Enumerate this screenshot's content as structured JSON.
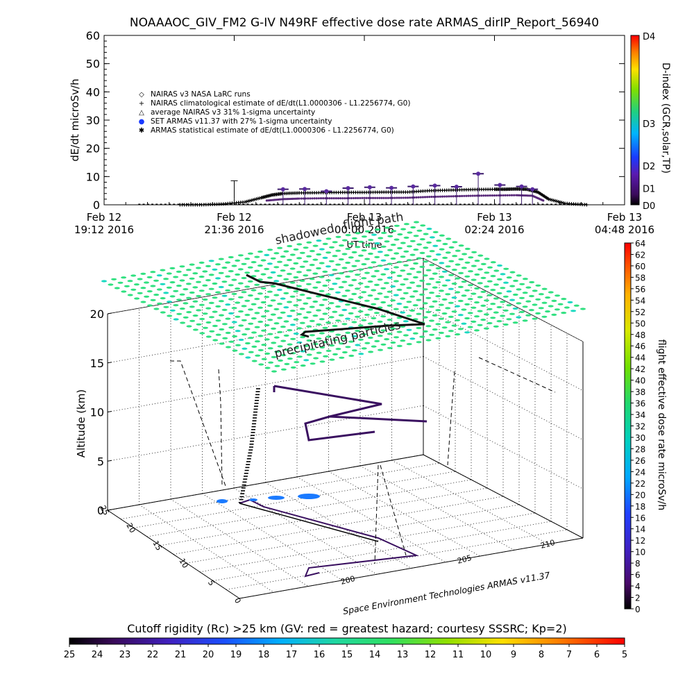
{
  "top_panel": {
    "title": "NOAAAOC_GIV_FM2 G-IV    N49RF   effective dose rate ARMAS_dirIP_Report_56940",
    "ylabel": "dE/dt microSv/h",
    "xlabel": "UT time",
    "right_label": "D-index (GCR,solar,TP)",
    "legend": [
      {
        "marker": "◇",
        "text": "NAIRAS v3 NASA LaRC runs"
      },
      {
        "marker": "+",
        "text": "NAIRAS climatological estimate of dE/dt(L1.0000306 - L1.2256774, G0)"
      },
      {
        "marker": "△",
        "text": "average NAIRAS v3 31% 1-sigma uncertainty"
      },
      {
        "marker": "●",
        "text": "SET ARMAS v11.37 with 27% 1-sigma uncertainty"
      },
      {
        "marker": "✱",
        "text": "ARMAS statistical estimate of dE/dt(L1.0000306 - L1.2256774, G0)"
      }
    ],
    "dindex_labels": [
      {
        "label": "D4",
        "level": 60
      },
      {
        "label": "D3",
        "level": 29
      },
      {
        "label": "D2",
        "level": 14
      },
      {
        "label": "D1",
        "level": 6
      },
      {
        "label": "D0",
        "level": 0
      }
    ]
  },
  "overlay_labels": {
    "shadowed": "shadowed",
    "flight_path": "flight path",
    "precipitating": "precipitating particles"
  },
  "bottom_panel": {
    "zlabel": "Altitude (km)",
    "credit": "Space Environment Technologies ARMAS v11.37",
    "colorbar_title": "flight effective dose rate microSv/h",
    "colorbar_ticks": [
      "64",
      "62",
      "60",
      "58",
      "56",
      "54",
      "52",
      "50",
      "48",
      "46",
      "44",
      "42",
      "40",
      "38",
      "36",
      "34",
      "32",
      "30",
      "28",
      "26",
      "24",
      "22",
      "20",
      "18",
      "16",
      "14",
      "12",
      "10",
      "8",
      "6",
      "4",
      "2",
      "0"
    ],
    "z_ticks": [
      "20",
      "15",
      "10",
      "5",
      "0"
    ],
    "lat_ticks": [
      "25",
      "20",
      "15",
      "10",
      "5",
      "0"
    ],
    "lon_ticks": [
      "200",
      "205",
      "210"
    ],
    "rigidity_title": "Cutoff rigidity (Rc) >25 km (GV: red = greatest hazard; courtesy SSSRC; Kp=2)",
    "rigidity_ticks": [
      "25",
      "24",
      "23",
      "22",
      "21",
      "20",
      "19",
      "18",
      "17",
      "16",
      "15",
      "14",
      "13",
      "12",
      "11",
      "10",
      "9",
      "8",
      "7",
      "6",
      "5"
    ]
  },
  "chart_data": {
    "type": "scatter",
    "title": "NOAAAOC_GIV_FM2 G-IV    N49RF   effective dose rate ARMAS_dirIP_Report_56940",
    "xlabel": "UT time",
    "ylabel": "dE/dt microSv/h",
    "ylim": [
      0,
      60
    ],
    "x_ticks": [
      {
        "day": "Feb 12",
        "time": "19:12 2016"
      },
      {
        "day": "Feb 12",
        "time": "21:36 2016"
      },
      {
        "day": "Feb 13",
        "time": "00:00 2016"
      },
      {
        "day": "Feb 13",
        "time": "02:24 2016"
      },
      {
        "day": "Feb 13",
        "time": "04:48 2016"
      }
    ],
    "y_ticks": [
      "60",
      "50",
      "40",
      "30",
      "20",
      "10",
      "0"
    ],
    "xlim_hours_from_first_tick": [
      0,
      9.6
    ],
    "grid": false,
    "legend_position": "top-left",
    "series": [
      {
        "name": "NAIRAS climatological estimate of dE/dt(L1.0000306 - L1.2256774, G0)",
        "marker": "+",
        "x": [
          1.4,
          1.8,
          2.2,
          2.6,
          2.9,
          3.1,
          3.3,
          3.6,
          4.0,
          4.4,
          4.8,
          5.2,
          5.6,
          6.0,
          6.4,
          6.8,
          7.2,
          7.4,
          7.6,
          7.8,
          8.0,
          8.2,
          8.5,
          8.9
        ],
        "y": [
          0,
          0,
          0.3,
          1,
          2.5,
          3.5,
          4.0,
          4.2,
          4.3,
          4.4,
          4.4,
          4.5,
          4.5,
          5.0,
          5.2,
          5.4,
          5.5,
          5.5,
          5.6,
          5.5,
          4.5,
          2.0,
          0.5,
          0
        ]
      },
      {
        "name": "ARMAS statistical estimate of dE/dt(L1.0000306 - L1.2256774, G0)",
        "marker": "✱",
        "x": [
          3.0,
          3.3,
          3.6,
          4.0,
          4.4,
          4.8,
          5.2,
          5.6,
          6.0,
          6.4,
          6.8,
          7.2,
          7.6,
          7.9,
          8.1
        ],
        "y": [
          1.5,
          2.0,
          2.2,
          2.3,
          2.3,
          2.4,
          2.4,
          2.5,
          2.8,
          3.0,
          3.2,
          3.3,
          3.4,
          3.2,
          1.5
        ]
      },
      {
        "name": "SET ARMAS v11.37 with 27% 1-sigma uncertainty",
        "marker": "●",
        "x": [
          3.3,
          3.7,
          4.1,
          4.5,
          4.9,
          5.3,
          5.7,
          6.1,
          6.5,
          6.9,
          7.3,
          7.7,
          7.9
        ],
        "y": [
          5.5,
          5.6,
          4.8,
          5.9,
          6.2,
          6.0,
          6.5,
          6.8,
          6.4,
          11.0,
          7.0,
          6.5,
          5.5
        ]
      }
    ]
  }
}
